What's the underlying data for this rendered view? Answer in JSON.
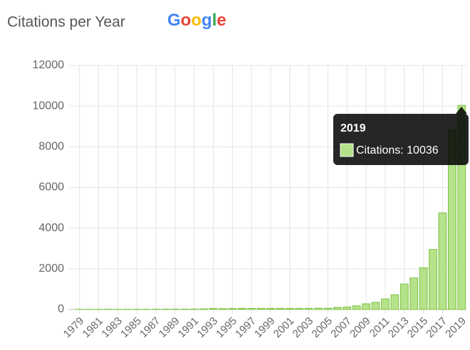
{
  "chart_data": {
    "type": "bar",
    "title": "Citations per Year",
    "logo": "Google",
    "categories": [
      "1979",
      null,
      "1981",
      null,
      "1983",
      null,
      "1985",
      null,
      "1987",
      null,
      "1989",
      null,
      "1991",
      null,
      "1993",
      null,
      "1995",
      null,
      "1997",
      null,
      "1999",
      null,
      "2001",
      null,
      "2003",
      null,
      "2005",
      null,
      "2007",
      null,
      "2009",
      null,
      "2011",
      null,
      "2013",
      null,
      "2015",
      null,
      "2017",
      null,
      "2019"
    ],
    "series": [
      {
        "name": "Citations",
        "color": "#b5e28a",
        "values": [
          8,
          10,
          10,
          12,
          12,
          12,
          14,
          14,
          15,
          16,
          18,
          20,
          22,
          30,
          50,
          40,
          50,
          55,
          55,
          55,
          55,
          55,
          55,
          55,
          55,
          60,
          60,
          100,
          120,
          180,
          280,
          350,
          520,
          720,
          1250,
          1550,
          2050,
          2950,
          4750,
          8850,
          10036
        ]
      }
    ],
    "ylim": [
      0,
      12000
    ],
    "yticks": [
      0,
      2000,
      4000,
      6000,
      8000,
      10000,
      12000
    ],
    "grid": true,
    "tooltip": {
      "title": "2019",
      "label": "Citations: 10036"
    }
  }
}
